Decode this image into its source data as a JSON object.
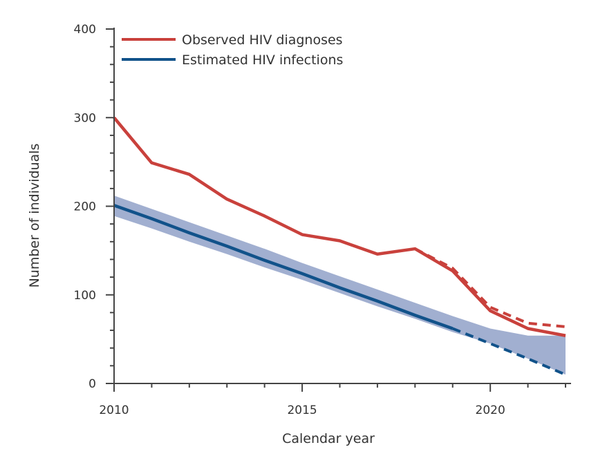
{
  "chart_data": {
    "type": "line",
    "title": "",
    "xlabel": "Calendar year",
    "ylabel": "Number of individuals",
    "xlim": [
      2010,
      2022
    ],
    "ylim": [
      0,
      400
    ],
    "x_ticks": [
      2010,
      2015,
      2020
    ],
    "y_ticks": [
      0,
      100,
      200,
      300,
      400
    ],
    "grid": false,
    "legend_position": "top-left",
    "colors": {
      "observed": "#c9413c",
      "estimated": "#11528a",
      "band": "#a1afd0"
    },
    "x": [
      2010,
      2011,
      2012,
      2013,
      2014,
      2015,
      2016,
      2017,
      2018,
      2019,
      2020,
      2021,
      2022
    ],
    "series": [
      {
        "name": "Observed HIV diagnoses",
        "style": "solid",
        "values": [
          300,
          249,
          236,
          208,
          189,
          168,
          161,
          146,
          152,
          127,
          82,
          62,
          54
        ]
      },
      {
        "name": "Estimated HIV infections",
        "style": "solid",
        "values": [
          201,
          186,
          170,
          155,
          139,
          124,
          108,
          93,
          77,
          62,
          null,
          null,
          null
        ]
      }
    ],
    "extra_series": [
      {
        "style": "dashed",
        "color": "observed",
        "x": [
          2018,
          2019,
          2020,
          2021,
          2022
        ],
        "values": [
          152,
          130,
          86,
          68,
          64
        ]
      },
      {
        "style": "dashed",
        "color": "estimated",
        "x": [
          2019,
          2020,
          2021,
          2022
        ],
        "values": [
          62,
          45,
          28,
          10
        ]
      }
    ],
    "band": {
      "upper": [
        212,
        197,
        182,
        167,
        152,
        136,
        121,
        106,
        91,
        76,
        62,
        54,
        54
      ],
      "lower": [
        189,
        175,
        160,
        146,
        131,
        117,
        102,
        87,
        73,
        58,
        45,
        28,
        10
      ]
    }
  }
}
